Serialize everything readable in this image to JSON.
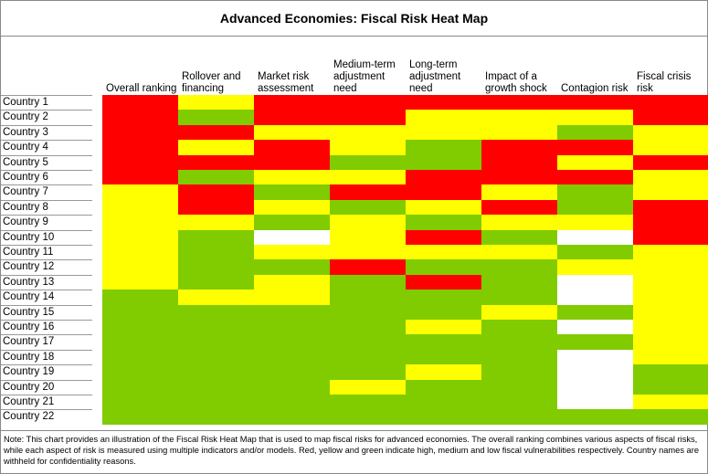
{
  "title": "Advanced Economies: Fiscal Risk Heat Map",
  "columns": [
    "Overall ranking",
    "Rollover and financing",
    "Market risk assessment",
    "Medium-term adjustment need",
    "Long-term adjustment need",
    "Impact of a growth shock",
    "Contagion risk",
    "Fiscal crisis risk"
  ],
  "rows": [
    {
      "name": "Country 1",
      "cells": [
        "#ff0000",
        "#ffff00",
        "#ff0000",
        "#ff0000",
        "#ff0000",
        "#ff0000",
        "#ff0000",
        "#ff0000"
      ]
    },
    {
      "name": "Country 2",
      "cells": [
        "#ff0000",
        "#80cc00",
        "#ff0000",
        "#ff0000",
        "#ffff00",
        "#ffff00",
        "#ffff00",
        "#ff0000"
      ]
    },
    {
      "name": "Country 3",
      "cells": [
        "#ff0000",
        "#ff0000",
        "#ffff00",
        "#ffff00",
        "#ffff00",
        "#ffff00",
        "#80cc00",
        "#ffff00"
      ]
    },
    {
      "name": "Country 4",
      "cells": [
        "#ff0000",
        "#ffff00",
        "#ff0000",
        "#ffff00",
        "#80cc00",
        "#ff0000",
        "#ff0000",
        "#ffff00"
      ]
    },
    {
      "name": "Country 5",
      "cells": [
        "#ff0000",
        "#ff0000",
        "#ff0000",
        "#80cc00",
        "#80cc00",
        "#ff0000",
        "#ffff00",
        "#ff0000"
      ]
    },
    {
      "name": "Country 6",
      "cells": [
        "#ff0000",
        "#80cc00",
        "#ffff00",
        "#ffff00",
        "#ff0000",
        "#ff0000",
        "#ff0000",
        "#ffff00"
      ]
    },
    {
      "name": "Country 7",
      "cells": [
        "#ffff00",
        "#ff0000",
        "#80cc00",
        "#ff0000",
        "#ff0000",
        "#ffff00",
        "#80cc00",
        "#ffff00"
      ]
    },
    {
      "name": "Country 8",
      "cells": [
        "#ffff00",
        "#ff0000",
        "#ffff00",
        "#80cc00",
        "#ffff00",
        "#ff0000",
        "#80cc00",
        "#ff0000"
      ]
    },
    {
      "name": "Country 9",
      "cells": [
        "#ffff00",
        "#ffff00",
        "#80cc00",
        "#ffff00",
        "#80cc00",
        "#ffff00",
        "#ffff00",
        "#ff0000"
      ]
    },
    {
      "name": "Country 10",
      "cells": [
        "#ffff00",
        "#80cc00",
        "#ffffff",
        "#ffff00",
        "#ff0000",
        "#80cc00",
        "#ffffff",
        "#ff0000"
      ]
    },
    {
      "name": "Country 11",
      "cells": [
        "#ffff00",
        "#80cc00",
        "#ffff00",
        "#ffff00",
        "#ffff00",
        "#ffff00",
        "#80cc00",
        "#ffff00"
      ]
    },
    {
      "name": "Country 12",
      "cells": [
        "#ffff00",
        "#80cc00",
        "#80cc00",
        "#ff0000",
        "#80cc00",
        "#80cc00",
        "#ffff00",
        "#ffff00"
      ]
    },
    {
      "name": "Country 13",
      "cells": [
        "#ffff00",
        "#80cc00",
        "#ffff00",
        "#80cc00",
        "#ff0000",
        "#80cc00",
        "#ffffff",
        "#ffff00"
      ]
    },
    {
      "name": "Country 14",
      "cells": [
        "#80cc00",
        "#ffff00",
        "#ffff00",
        "#80cc00",
        "#80cc00",
        "#80cc00",
        "#ffffff",
        "#ffff00"
      ]
    },
    {
      "name": "Country 15",
      "cells": [
        "#80cc00",
        "#80cc00",
        "#80cc00",
        "#80cc00",
        "#80cc00",
        "#ffff00",
        "#80cc00",
        "#ffff00"
      ]
    },
    {
      "name": "Country 16",
      "cells": [
        "#80cc00",
        "#80cc00",
        "#80cc00",
        "#80cc00",
        "#ffff00",
        "#80cc00",
        "#ffffff",
        "#ffff00"
      ]
    },
    {
      "name": "Country 17",
      "cells": [
        "#80cc00",
        "#80cc00",
        "#80cc00",
        "#80cc00",
        "#80cc00",
        "#80cc00",
        "#80cc00",
        "#ffff00"
      ]
    },
    {
      "name": "Country 18",
      "cells": [
        "#80cc00",
        "#80cc00",
        "#80cc00",
        "#80cc00",
        "#80cc00",
        "#80cc00",
        "#ffffff",
        "#ffff00"
      ]
    },
    {
      "name": "Country 19",
      "cells": [
        "#80cc00",
        "#80cc00",
        "#80cc00",
        "#80cc00",
        "#ffff00",
        "#80cc00",
        "#ffffff",
        "#80cc00"
      ]
    },
    {
      "name": "Country 20",
      "cells": [
        "#80cc00",
        "#80cc00",
        "#80cc00",
        "#ffff00",
        "#80cc00",
        "#80cc00",
        "#ffffff",
        "#80cc00"
      ]
    },
    {
      "name": "Country 21",
      "cells": [
        "#80cc00",
        "#80cc00",
        "#80cc00",
        "#80cc00",
        "#80cc00",
        "#80cc00",
        "#ffffff",
        "#ffff00"
      ]
    },
    {
      "name": "Country 22",
      "cells": [
        "#80cc00",
        "#80cc00",
        "#80cc00",
        "#80cc00",
        "#80cc00",
        "#80cc00",
        "#80cc00",
        "#80cc00"
      ]
    }
  ],
  "note": "Note: This chart provides an illustration of the Fiscal Risk Heat Map that is used to map fiscal risks for advanced economies. The overall ranking combines various aspects of fiscal risks, while each aspect of risk is measured using multiple indicators and/or models. Red, yellow and green indicate high, medium and low fiscal vulnerabilities respectively. Country names are withheld for confidentiality reasons."
}
